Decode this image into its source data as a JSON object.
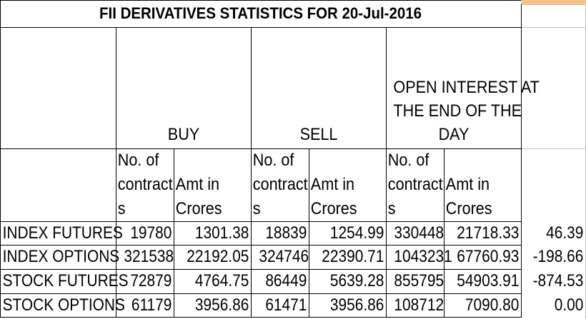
{
  "title": "FII DERIVATIVES STATISTICS FOR 20-Jul-2016",
  "groups": {
    "buy": "BUY",
    "sell": "SELL",
    "oi_line1": "OPEN INTEREST AT",
    "oi_line2": "THE END OF THE",
    "oi_line3": "DAY"
  },
  "subheaders": {
    "contracts_line1": "No. of",
    "contracts_line2": "contract",
    "contracts_line3": "s",
    "amt_line1": "Amt in",
    "amt_line2": "Crores"
  },
  "rows": [
    {
      "label": "INDEX FUTURES",
      "buy_contracts": "19780",
      "buy_amt": "1301.38",
      "sell_contracts": "18839",
      "sell_amt": "1254.99",
      "oi_contracts": "330448",
      "oi_amt": "21718.33",
      "net": "46.39"
    },
    {
      "label": "INDEX OPTIONS",
      "buy_contracts": "321538",
      "buy_amt": "22192.05",
      "sell_contracts": "324746",
      "sell_amt": "22390.71",
      "oi_contracts": "1043231",
      "oi_amt": "67760.93",
      "net": "-198.66"
    },
    {
      "label": "STOCK FUTURES",
      "buy_contracts": "72879",
      "buy_amt": "4764.75",
      "sell_contracts": "86449",
      "sell_amt": "5639.28",
      "oi_contracts": "855795",
      "oi_amt": "54903.91",
      "net": "-874.53"
    },
    {
      "label": "STOCK OPTIONS",
      "buy_contracts": "61179",
      "buy_amt": "3956.86",
      "sell_contracts": "61471",
      "sell_amt": "3956.86",
      "oi_contracts": "108712",
      "oi_amt": "7090.80",
      "net": "0.00"
    }
  ]
}
